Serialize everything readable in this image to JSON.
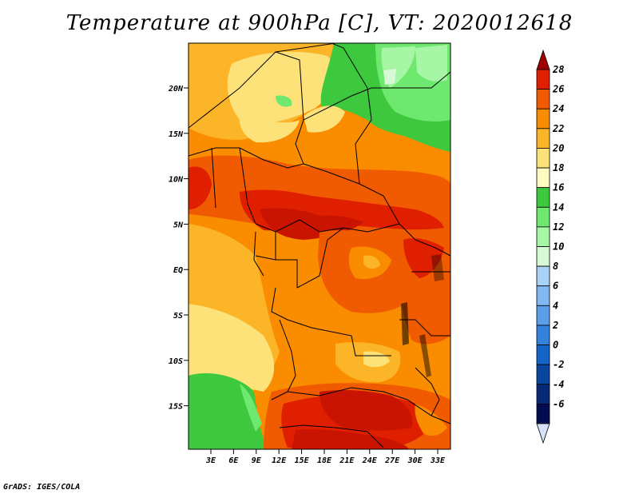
{
  "title": "Temperature at 900hPa [C], VT: 2020012618",
  "credit": "GrADS: IGES/COLA",
  "map": {
    "lat_labels": [
      "20N",
      "15N",
      "10N",
      "5N",
      "EQ",
      "5S",
      "10S",
      "15S"
    ],
    "lon_labels": [
      "3E",
      "6E",
      "9E",
      "12E",
      "15E",
      "18E",
      "21E",
      "24E",
      "27E",
      "30E",
      "33E"
    ]
  },
  "colorbar": {
    "labels": [
      "28",
      "26",
      "24",
      "22",
      "20",
      "18",
      "16",
      "14",
      "12",
      "10",
      "8",
      "6",
      "4",
      "2",
      "0",
      "-2",
      "-4",
      "-6"
    ],
    "colors": [
      "#a00000",
      "#e01e00",
      "#f05a00",
      "#fa8c00",
      "#fcb428",
      "#fde27a",
      "#fff9c2",
      "#3ec83e",
      "#6fe86f",
      "#a6f6a6",
      "#d6fad6",
      "#aad2f6",
      "#82b8f0",
      "#5a9ee8",
      "#3282dc",
      "#1464c8",
      "#0a46a0",
      "#062a78",
      "#020c50",
      "#d6e0f8"
    ]
  }
}
